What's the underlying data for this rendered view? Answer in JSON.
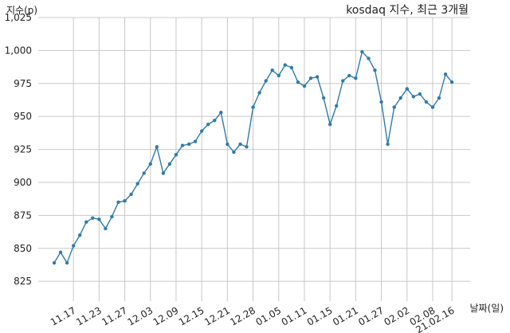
{
  "chart_data": {
    "type": "line",
    "title": "kosdaq 지수, 최근 3개월",
    "ylabel": "지수(p)",
    "xlabel": "날짜(일)",
    "ylim": [
      810,
      1025
    ],
    "yticks": [
      825,
      850,
      875,
      900,
      925,
      950,
      975,
      1000,
      1025
    ],
    "ytick_labels": [
      "825",
      "850",
      "875",
      "900",
      "925",
      "950",
      "975",
      "1,000",
      "1,025"
    ],
    "grid": true,
    "color": "#2e7bab",
    "xticks": [
      {
        "index": 3,
        "label": "11.17"
      },
      {
        "index": 7,
        "label": "11.23"
      },
      {
        "index": 11,
        "label": "11.27"
      },
      {
        "index": 15,
        "label": "12.03"
      },
      {
        "index": 19,
        "label": "12.09"
      },
      {
        "index": 23,
        "label": "12.15"
      },
      {
        "index": 27,
        "label": "12.21"
      },
      {
        "index": 31,
        "label": "12.28"
      },
      {
        "index": 35,
        "label": "01.05"
      },
      {
        "index": 39,
        "label": "01.11"
      },
      {
        "index": 43,
        "label": "01.15"
      },
      {
        "index": 47,
        "label": "01.21"
      },
      {
        "index": 51,
        "label": "01.27"
      },
      {
        "index": 55,
        "label": "02.02"
      },
      {
        "index": 59,
        "label": "02.08"
      },
      {
        "index": 62,
        "label": "21.02.16"
      }
    ],
    "values": [
      839,
      847,
      839,
      852,
      860,
      870,
      873,
      872,
      865,
      874,
      885,
      886,
      891,
      899,
      907,
      914,
      927,
      907,
      914,
      921,
      928,
      929,
      931,
      939,
      944,
      947,
      953,
      929,
      923,
      929,
      927,
      957,
      968,
      977,
      985,
      981,
      989,
      987,
      976,
      973,
      979,
      980,
      964,
      944,
      958,
      977,
      981,
      979,
      999,
      994,
      985,
      961,
      929,
      957,
      964,
      971,
      965,
      967,
      961,
      957,
      964,
      982,
      976
    ]
  }
}
